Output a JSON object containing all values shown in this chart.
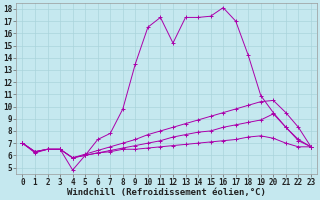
{
  "xlabel": "Windchill (Refroidissement éolien,°C)",
  "background_color": "#c5e8ef",
  "grid_color": "#aad4dc",
  "line_color": "#aa00aa",
  "xlim_min": -0.5,
  "xlim_max": 23.5,
  "ylim_min": 4.5,
  "ylim_max": 18.5,
  "yticks": [
    5,
    6,
    7,
    8,
    9,
    10,
    11,
    12,
    13,
    14,
    15,
    16,
    17,
    18
  ],
  "xticks": [
    0,
    1,
    2,
    3,
    4,
    5,
    6,
    7,
    8,
    9,
    10,
    11,
    12,
    13,
    14,
    15,
    16,
    17,
    18,
    19,
    20,
    21,
    22,
    23
  ],
  "series": [
    [
      7.0,
      6.2,
      6.5,
      6.5,
      4.8,
      6.0,
      7.3,
      7.8,
      9.8,
      13.5,
      16.5,
      17.3,
      15.2,
      17.3,
      17.3,
      17.4,
      18.1,
      17.0,
      14.2,
      10.9,
      9.5,
      8.3,
      7.2,
      6.7
    ],
    [
      7.0,
      6.3,
      6.5,
      6.5,
      5.8,
      6.1,
      6.4,
      6.7,
      7.0,
      7.3,
      7.7,
      8.0,
      8.3,
      8.6,
      8.9,
      9.2,
      9.5,
      9.8,
      10.1,
      10.4,
      10.5,
      9.5,
      8.3,
      6.7
    ],
    [
      7.0,
      6.3,
      6.5,
      6.5,
      5.8,
      6.0,
      6.2,
      6.4,
      6.6,
      6.8,
      7.0,
      7.2,
      7.5,
      7.7,
      7.9,
      8.0,
      8.3,
      8.5,
      8.7,
      8.9,
      9.4,
      8.3,
      7.3,
      6.7
    ],
    [
      7.0,
      6.3,
      6.5,
      6.5,
      5.8,
      6.0,
      6.2,
      6.3,
      6.5,
      6.5,
      6.6,
      6.7,
      6.8,
      6.9,
      7.0,
      7.1,
      7.2,
      7.3,
      7.5,
      7.6,
      7.4,
      7.0,
      6.7,
      6.7
    ]
  ],
  "tick_fontsize": 5.5,
  "xlabel_fontsize": 6.5,
  "figsize": [
    3.2,
    2.0
  ],
  "dpi": 100
}
